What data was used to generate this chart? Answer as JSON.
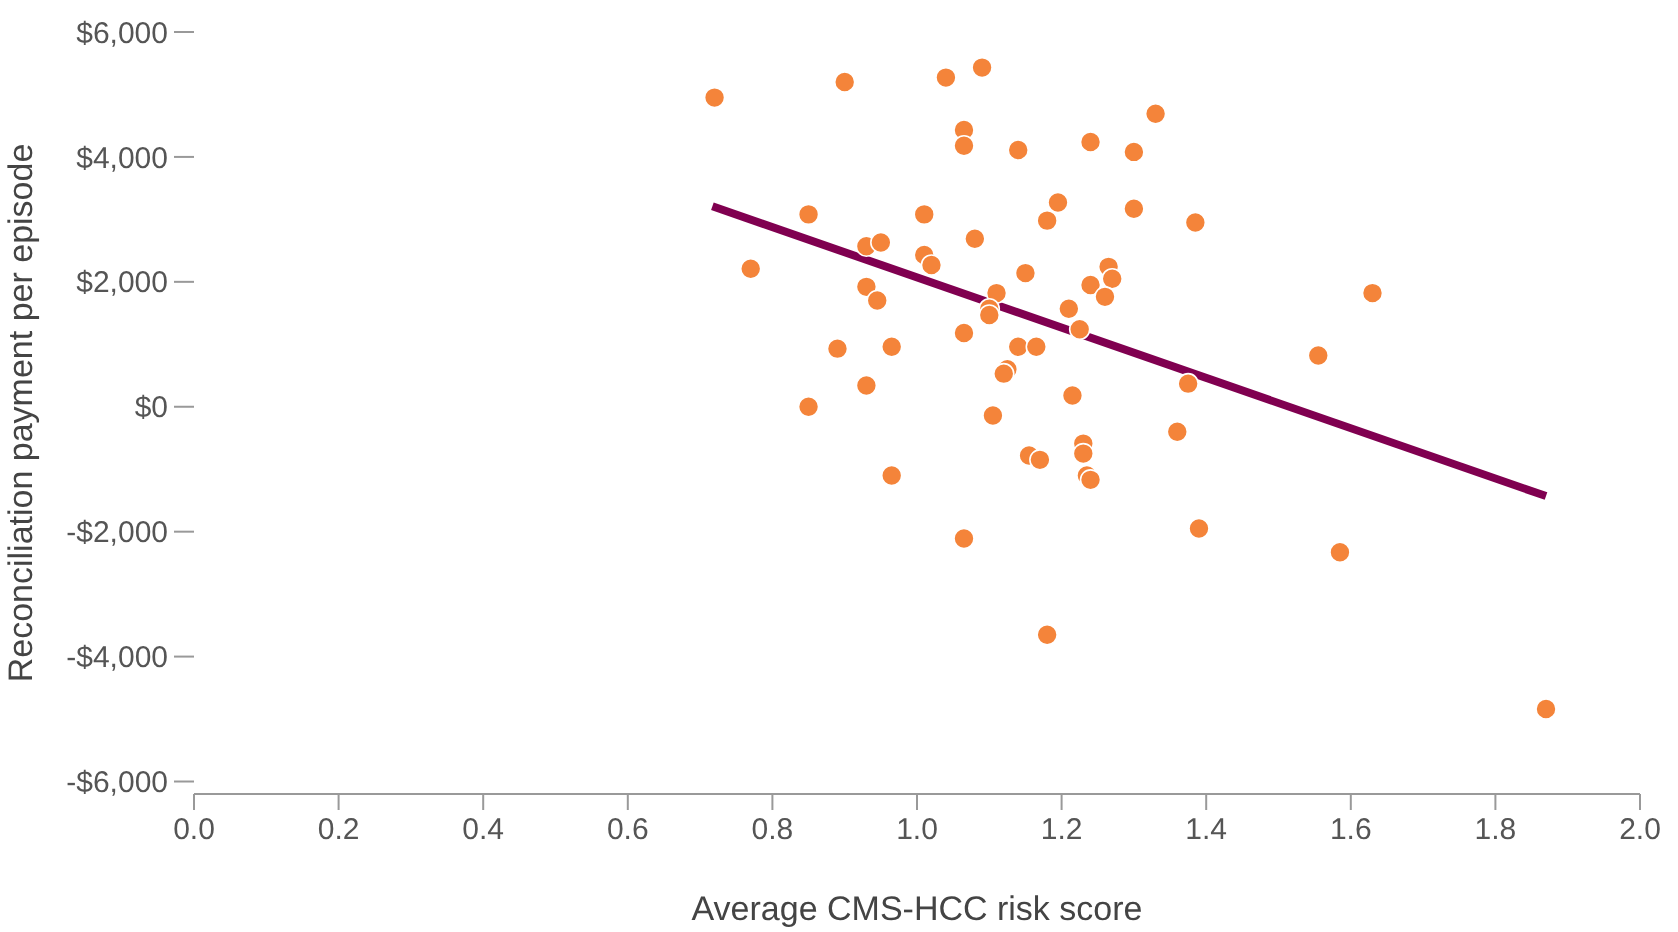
{
  "chart_data": {
    "type": "scatter",
    "xlabel": "Average CMS-HCC risk score",
    "ylabel": "Reconciliation payment per episode",
    "xlim": [
      0,
      2
    ],
    "xticks": [
      {
        "value": 0,
        "label": "0.0"
      },
      {
        "value": 0.2,
        "label": "0.2"
      },
      {
        "value": 0.4,
        "label": "0.4"
      },
      {
        "value": 0.6,
        "label": "0.6"
      },
      {
        "value": 0.8,
        "label": "0.8"
      },
      {
        "value": 1,
        "label": "1.0"
      },
      {
        "value": 1.2,
        "label": "1.2"
      },
      {
        "value": 1.4,
        "label": "1.4"
      },
      {
        "value": 1.6,
        "label": "1.6"
      },
      {
        "value": 1.8,
        "label": "1.8"
      },
      {
        "value": 2,
        "label": "2.0"
      }
    ],
    "ylim": [
      -6200,
      6000
    ],
    "yticks": [
      {
        "value": -6000,
        "label": "-$6,000"
      },
      {
        "value": -4000,
        "label": "-$4,000"
      },
      {
        "value": -2000,
        "label": "-$2,000"
      },
      {
        "value": 0,
        "label": "$0"
      },
      {
        "value": 2000,
        "label": "$2,000"
      },
      {
        "value": 4000,
        "label": "$4,000"
      },
      {
        "value": 6000,
        "label": "$6,000"
      }
    ],
    "grid": false,
    "marker": "circle",
    "series": [
      {
        "color": "#f4843a",
        "x": [
          0.72,
          0.9,
          1.04,
          1.09,
          1.065,
          1.065,
          1.14,
          1.24,
          1.33,
          1.3,
          0.77,
          0.93,
          0.95,
          0.85,
          1.01,
          1.01,
          1.02,
          1.08,
          1.15,
          1.195,
          1.18,
          1.3,
          1.385,
          0.93,
          0.945,
          1.11,
          1.1,
          1.1,
          1.065,
          1.21,
          1.225,
          1.24,
          1.265,
          1.27,
          1.26,
          0.89,
          0.965,
          1.14,
          1.165,
          1.125,
          1.12,
          0.93,
          1.215,
          1.375,
          0.85,
          1.105,
          1.155,
          1.17,
          1.23,
          1.23,
          1.235,
          1.24,
          1.36,
          0.965,
          1.065,
          1.39,
          1.18,
          1.63,
          1.555,
          1.585,
          1.87
        ],
        "values": [
          4950,
          5200,
          5270,
          5430,
          4430,
          4180,
          4110,
          4240,
          4690,
          4080,
          2210,
          2570,
          2630,
          3080,
          3080,
          2430,
          2270,
          2690,
          2140,
          3270,
          2980,
          3170,
          2950,
          1920,
          1700,
          1820,
          1570,
          1470,
          1180,
          1570,
          1240,
          1950,
          2240,
          2050,
          1760,
          930,
          960,
          960,
          960,
          600,
          530,
          340,
          180,
          370,
          0,
          -140,
          -780,
          -850,
          -590,
          -750,
          -1100,
          -1170,
          -400,
          -1100,
          -2110,
          -1950,
          -3650,
          1820,
          820,
          -2330,
          -4840
        ]
      },
      {
        "type": "line",
        "color": "#800050",
        "marker": "none",
        "x": [
          0.717,
          1.87
        ],
        "values": [
          3210,
          -1430
        ]
      }
    ]
  }
}
